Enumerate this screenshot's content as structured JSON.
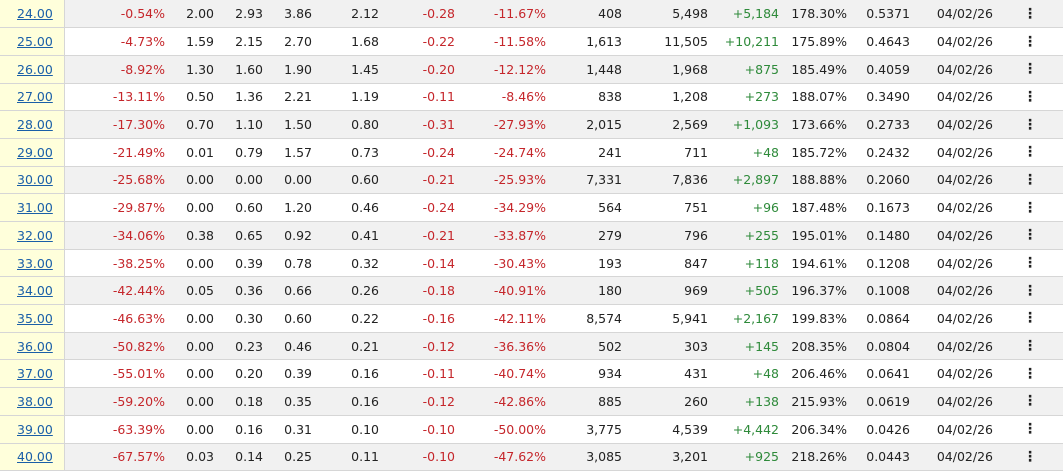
{
  "rows": [
    {
      "strike": "24.00",
      "pct_itm": "-0.54%",
      "bid": "2.00",
      "mid": "2.93",
      "ask": "3.86",
      "last": "2.12",
      "change": "-0.28",
      "pct_chg": "-11.67%",
      "volume": "408",
      "open_int": "5,498",
      "oi_chg": "+5,184",
      "iv": "178.30%",
      "delta": "0.5371",
      "date": "04/02/26"
    },
    {
      "strike": "25.00",
      "pct_itm": "-4.73%",
      "bid": "1.59",
      "mid": "2.15",
      "ask": "2.70",
      "last": "1.68",
      "change": "-0.22",
      "pct_chg": "-11.58%",
      "volume": "1,613",
      "open_int": "11,505",
      "oi_chg": "+10,211",
      "iv": "175.89%",
      "delta": "0.4643",
      "date": "04/02/26"
    },
    {
      "strike": "26.00",
      "pct_itm": "-8.92%",
      "bid": "1.30",
      "mid": "1.60",
      "ask": "1.90",
      "last": "1.45",
      "change": "-0.20",
      "pct_chg": "-12.12%",
      "volume": "1,448",
      "open_int": "1,968",
      "oi_chg": "+875",
      "iv": "185.49%",
      "delta": "0.4059",
      "date": "04/02/26"
    },
    {
      "strike": "27.00",
      "pct_itm": "-13.11%",
      "bid": "0.50",
      "mid": "1.36",
      "ask": "2.21",
      "last": "1.19",
      "change": "-0.11",
      "pct_chg": "-8.46%",
      "volume": "838",
      "open_int": "1,208",
      "oi_chg": "+273",
      "iv": "188.07%",
      "delta": "0.3490",
      "date": "04/02/26"
    },
    {
      "strike": "28.00",
      "pct_itm": "-17.30%",
      "bid": "0.70",
      "mid": "1.10",
      "ask": "1.50",
      "last": "0.80",
      "change": "-0.31",
      "pct_chg": "-27.93%",
      "volume": "2,015",
      "open_int": "2,569",
      "oi_chg": "+1,093",
      "iv": "173.66%",
      "delta": "0.2733",
      "date": "04/02/26"
    },
    {
      "strike": "29.00",
      "pct_itm": "-21.49%",
      "bid": "0.01",
      "mid": "0.79",
      "ask": "1.57",
      "last": "0.73",
      "change": "-0.24",
      "pct_chg": "-24.74%",
      "volume": "241",
      "open_int": "711",
      "oi_chg": "+48",
      "iv": "185.72%",
      "delta": "0.2432",
      "date": "04/02/26"
    },
    {
      "strike": "30.00",
      "pct_itm": "-25.68%",
      "bid": "0.00",
      "mid": "0.00",
      "ask": "0.00",
      "last": "0.60",
      "change": "-0.21",
      "pct_chg": "-25.93%",
      "volume": "7,331",
      "open_int": "7,836",
      "oi_chg": "+2,897",
      "iv": "188.88%",
      "delta": "0.2060",
      "date": "04/02/26"
    },
    {
      "strike": "31.00",
      "pct_itm": "-29.87%",
      "bid": "0.00",
      "mid": "0.60",
      "ask": "1.20",
      "last": "0.46",
      "change": "-0.24",
      "pct_chg": "-34.29%",
      "volume": "564",
      "open_int": "751",
      "oi_chg": "+96",
      "iv": "187.48%",
      "delta": "0.1673",
      "date": "04/02/26"
    },
    {
      "strike": "32.00",
      "pct_itm": "-34.06%",
      "bid": "0.38",
      "mid": "0.65",
      "ask": "0.92",
      "last": "0.41",
      "change": "-0.21",
      "pct_chg": "-33.87%",
      "volume": "279",
      "open_int": "796",
      "oi_chg": "+255",
      "iv": "195.01%",
      "delta": "0.1480",
      "date": "04/02/26"
    },
    {
      "strike": "33.00",
      "pct_itm": "-38.25%",
      "bid": "0.00",
      "mid": "0.39",
      "ask": "0.78",
      "last": "0.32",
      "change": "-0.14",
      "pct_chg": "-30.43%",
      "volume": "193",
      "open_int": "847",
      "oi_chg": "+118",
      "iv": "194.61%",
      "delta": "0.1208",
      "date": "04/02/26"
    },
    {
      "strike": "34.00",
      "pct_itm": "-42.44%",
      "bid": "0.05",
      "mid": "0.36",
      "ask": "0.66",
      "last": "0.26",
      "change": "-0.18",
      "pct_chg": "-40.91%",
      "volume": "180",
      "open_int": "969",
      "oi_chg": "+505",
      "iv": "196.37%",
      "delta": "0.1008",
      "date": "04/02/26"
    },
    {
      "strike": "35.00",
      "pct_itm": "-46.63%",
      "bid": "0.00",
      "mid": "0.30",
      "ask": "0.60",
      "last": "0.22",
      "change": "-0.16",
      "pct_chg": "-42.11%",
      "volume": "8,574",
      "open_int": "5,941",
      "oi_chg": "+2,167",
      "iv": "199.83%",
      "delta": "0.0864",
      "date": "04/02/26"
    },
    {
      "strike": "36.00",
      "pct_itm": "-50.82%",
      "bid": "0.00",
      "mid": "0.23",
      "ask": "0.46",
      "last": "0.21",
      "change": "-0.12",
      "pct_chg": "-36.36%",
      "volume": "502",
      "open_int": "303",
      "oi_chg": "+145",
      "iv": "208.35%",
      "delta": "0.0804",
      "date": "04/02/26"
    },
    {
      "strike": "37.00",
      "pct_itm": "-55.01%",
      "bid": "0.00",
      "mid": "0.20",
      "ask": "0.39",
      "last": "0.16",
      "change": "-0.11",
      "pct_chg": "-40.74%",
      "volume": "934",
      "open_int": "431",
      "oi_chg": "+48",
      "iv": "206.46%",
      "delta": "0.0641",
      "date": "04/02/26"
    },
    {
      "strike": "38.00",
      "pct_itm": "-59.20%",
      "bid": "0.00",
      "mid": "0.18",
      "ask": "0.35",
      "last": "0.16",
      "change": "-0.12",
      "pct_chg": "-42.86%",
      "volume": "885",
      "open_int": "260",
      "oi_chg": "+138",
      "iv": "215.93%",
      "delta": "0.0619",
      "date": "04/02/26"
    },
    {
      "strike": "39.00",
      "pct_itm": "-63.39%",
      "bid": "0.00",
      "mid": "0.16",
      "ask": "0.31",
      "last": "0.10",
      "change": "-0.10",
      "pct_chg": "-50.00%",
      "volume": "3,775",
      "open_int": "4,539",
      "oi_chg": "+4,442",
      "iv": "206.34%",
      "delta": "0.0426",
      "date": "04/02/26"
    },
    {
      "strike": "40.00",
      "pct_itm": "-67.57%",
      "bid": "0.03",
      "mid": "0.14",
      "ask": "0.25",
      "last": "0.11",
      "change": "-0.10",
      "pct_chg": "-47.62%",
      "volume": "3,085",
      "open_int": "3,201",
      "oi_chg": "+925",
      "iv": "218.26%",
      "delta": "0.0443",
      "date": "04/02/26"
    }
  ],
  "menu_glyph": "⋮",
  "colors": {
    "negative": "#c5262b",
    "positive": "#2e8a3a",
    "link": "#1a5fa8",
    "strike_bg": "#ffffdb"
  }
}
